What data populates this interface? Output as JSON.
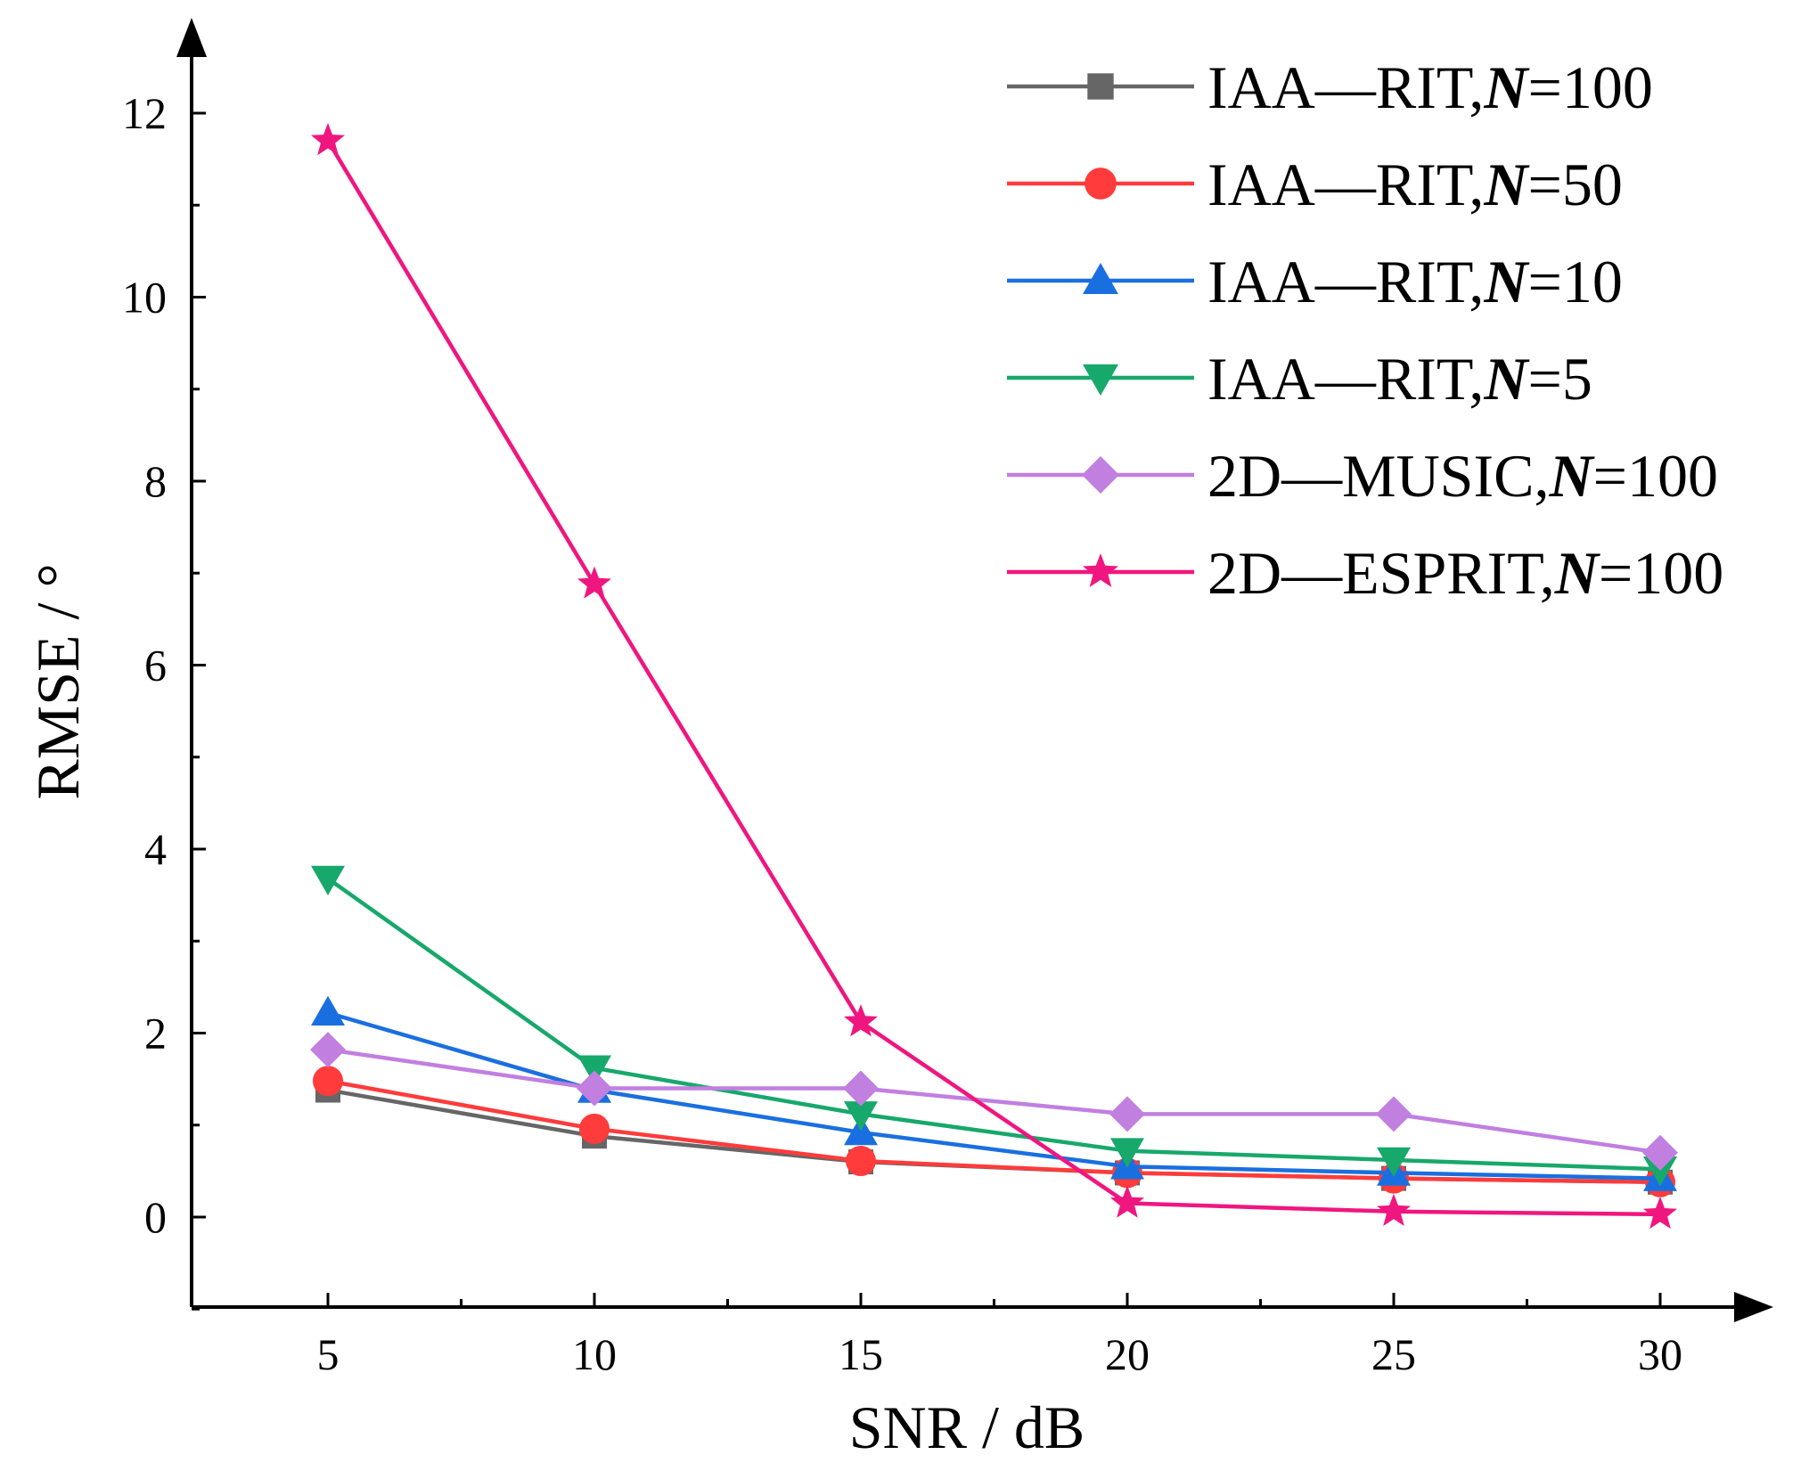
{
  "chart_data": {
    "type": "line",
    "title": "",
    "xlabel": "SNR / dB",
    "ylabel": "RMSE / °",
    "x": [
      5,
      10,
      15,
      20,
      25,
      30
    ],
    "xticks": [
      5,
      10,
      15,
      20,
      25,
      30
    ],
    "yticks": [
      0,
      2,
      4,
      6,
      8,
      10,
      12
    ],
    "xlim": [
      2.5,
      32.5
    ],
    "ylim": [
      -1,
      12.8
    ],
    "grid": false,
    "legend_position": "top-right",
    "series": [
      {
        "name": "IAA—RIT,N=100",
        "prefix": "IAA—RIT,",
        "n_label": "N",
        "n_value": "=100",
        "color": "#666666",
        "marker": "square",
        "values": [
          1.38,
          0.88,
          0.6,
          0.48,
          0.42,
          0.38
        ]
      },
      {
        "name": "IAA—RIT,N=50",
        "prefix": "IAA—RIT,",
        "n_label": "N",
        "n_value": "=50",
        "color": "#ff3b3b",
        "marker": "circle",
        "values": [
          1.48,
          0.96,
          0.61,
          0.48,
          0.42,
          0.38
        ]
      },
      {
        "name": "IAA—RIT,N=10",
        "prefix": "IAA—RIT,",
        "n_label": "N",
        "n_value": "=10",
        "color": "#1a6fe0",
        "marker": "triangle-up",
        "values": [
          2.22,
          1.38,
          0.92,
          0.55,
          0.48,
          0.42
        ]
      },
      {
        "name": "IAA—RIT,N=5",
        "prefix": "IAA—RIT,",
        "n_label": "N",
        "n_value": "=5",
        "color": "#17a86b",
        "marker": "triangle-down",
        "values": [
          3.68,
          1.62,
          1.12,
          0.72,
          0.62,
          0.52
        ]
      },
      {
        "name": "2D—MUSIC,N=100",
        "prefix": "2D—MUSIC,",
        "n_label": "N",
        "n_value": "=100",
        "color": "#c17fe0",
        "marker": "diamond",
        "values": [
          1.82,
          1.4,
          1.4,
          1.12,
          1.12,
          0.7
        ]
      },
      {
        "name": "2D—ESPRIT,N=100",
        "prefix": "2D—ESPRIT,",
        "n_label": "N",
        "n_value": "=100",
        "color": "#f0167f",
        "marker": "star",
        "values": [
          11.7,
          6.88,
          2.12,
          0.15,
          0.06,
          0.03
        ]
      }
    ]
  }
}
